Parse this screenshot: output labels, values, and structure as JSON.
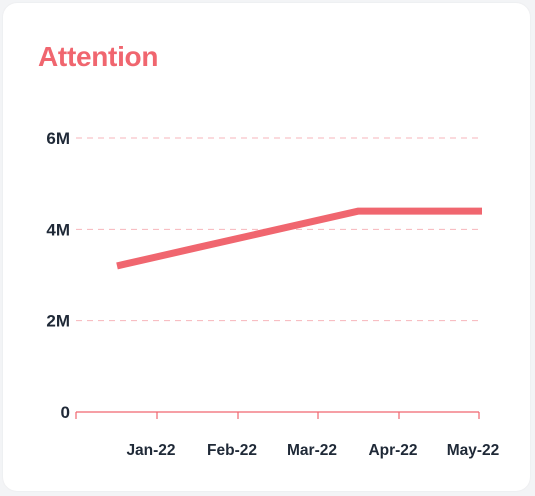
{
  "colors": {
    "accent": "#f0666f",
    "text": "#1f2937",
    "grid": "#f7b5bb",
    "background": "#ffffff"
  },
  "chart_data": {
    "type": "line",
    "title": "Attention",
    "xlabel": "",
    "ylabel": "",
    "categories": [
      "Jan-22",
      "Feb-22",
      "Mar-22",
      "Apr-22",
      "May-22"
    ],
    "series": [
      {
        "values": [
          3200000,
          3600000,
          4000000,
          4400000,
          4400000
        ]
      }
    ],
    "yticks": [
      {
        "value": 0,
        "label": "0"
      },
      {
        "value": 2000000,
        "label": "2M"
      },
      {
        "value": 4000000,
        "label": "4M"
      },
      {
        "value": 6000000,
        "label": "6M"
      }
    ],
    "ylim": [
      0,
      6000000
    ],
    "grid": true,
    "legend": "none"
  }
}
